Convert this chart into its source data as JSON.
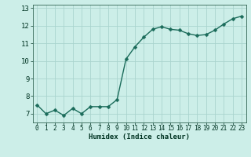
{
  "x": [
    0,
    1,
    2,
    3,
    4,
    5,
    6,
    7,
    8,
    9,
    10,
    11,
    12,
    13,
    14,
    15,
    16,
    17,
    18,
    19,
    20,
    21,
    22,
    23
  ],
  "y": [
    7.5,
    7.0,
    7.2,
    6.9,
    7.3,
    7.0,
    7.4,
    7.4,
    7.4,
    7.8,
    10.1,
    10.8,
    11.35,
    11.8,
    11.95,
    11.8,
    11.75,
    11.55,
    11.45,
    11.5,
    11.75,
    12.1,
    12.4,
    12.55
  ],
  "xlabel": "Humidex (Indice chaleur)",
  "ylim": [
    6.5,
    13.2
  ],
  "xlim": [
    -0.5,
    23.5
  ],
  "yticks": [
    7,
    8,
    9,
    10,
    11,
    12,
    13
  ],
  "xticks": [
    0,
    1,
    2,
    3,
    4,
    5,
    6,
    7,
    8,
    9,
    10,
    11,
    12,
    13,
    14,
    15,
    16,
    17,
    18,
    19,
    20,
    21,
    22,
    23
  ],
  "line_color": "#1a6b5a",
  "marker_color": "#1a6b5a",
  "bg_color": "#cceee8",
  "grid_color": "#aad4ce",
  "axis_color": "#336655",
  "label_color": "#003322",
  "xlabel_fontsize": 6.5,
  "tick_fontsize": 5.5,
  "ytick_fontsize": 6.5,
  "line_width": 1.0,
  "marker_size": 2.5
}
